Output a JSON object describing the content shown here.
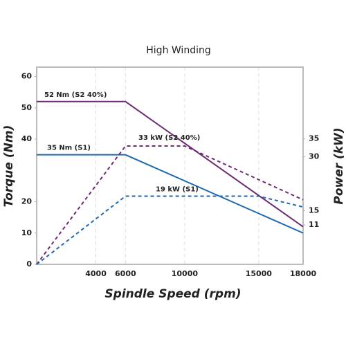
{
  "chart_data": {
    "type": "line",
    "title": "High Winding",
    "xlabel": "Spindle Speed (rpm)",
    "ylabel": "Torque (Nm)",
    "y2label": "Power (kW)",
    "xlim": [
      0,
      18000
    ],
    "xticks": [
      4000,
      6000,
      10000,
      15000,
      18000
    ],
    "ylim": [
      0,
      63
    ],
    "yticks": [
      0,
      10,
      20,
      40,
      50,
      60
    ],
    "y2lim": [
      0,
      55
    ],
    "y2ticks": [
      11,
      15,
      30,
      35
    ],
    "grid": true,
    "series": [
      {
        "name": "52 Nm (S2 40%)",
        "color": "#6e2a72",
        "dash": false,
        "x": [
          0,
          6000,
          18000
        ],
        "values": [
          52,
          52,
          12
        ]
      },
      {
        "name": "35 Nm (S1)",
        "color": "#1f69ae",
        "dash": false,
        "x": [
          0,
          6000,
          18000
        ],
        "values": [
          35,
          35,
          10
        ]
      },
      {
        "name": "33 kW (S2 40%)",
        "color": "#6e2a72",
        "dash": true,
        "axis": "y2",
        "x": [
          0,
          6000,
          10000,
          18000
        ],
        "values": [
          0,
          33,
          33,
          18
        ]
      },
      {
        "name": "19 kW (S1)",
        "color": "#1f69ae",
        "dash": true,
        "axis": "y2",
        "x": [
          0,
          6000,
          15000,
          18000
        ],
        "values": [
          0,
          19,
          19,
          16
        ]
      }
    ]
  }
}
